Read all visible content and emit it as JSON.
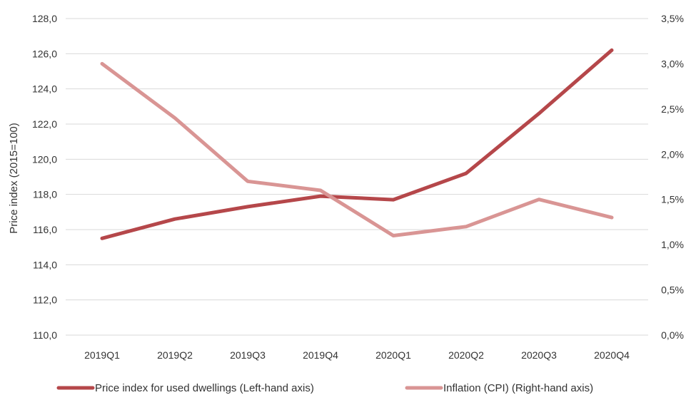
{
  "chart_data": {
    "type": "line",
    "title": "",
    "categories": [
      "2019Q1",
      "2019Q2",
      "2019Q3",
      "2019Q4",
      "2020Q1",
      "2020Q2",
      "2020Q3",
      "2020Q4"
    ],
    "left_axis": {
      "label": "Price index (2015=100)",
      "ylim": [
        110,
        128
      ],
      "ticks": [
        "110,0",
        "112,0",
        "114,0",
        "116,0",
        "118,0",
        "120,0",
        "122,0",
        "124,0",
        "126,0",
        "128,0"
      ]
    },
    "right_axis": {
      "label": "",
      "ylim": [
        0,
        3.5
      ],
      "ticks": [
        "0,0%",
        "0,5%",
        "1,0%",
        "1,5%",
        "2,0%",
        "2,5%",
        "3,0%",
        "3,5%"
      ]
    },
    "grid": true,
    "legend_position": "bottom",
    "series": [
      {
        "name": "Price index for used dwellings (Left-hand axis)",
        "axis": "left",
        "color": "#b5474a",
        "values": [
          115.5,
          116.6,
          117.3,
          117.9,
          117.7,
          119.2,
          122.6,
          126.2
        ]
      },
      {
        "name": "Inflation (CPI) (Right-hand axis)",
        "axis": "right",
        "color": "#d99594",
        "values": [
          3.0,
          2.4,
          1.7,
          1.6,
          1.1,
          1.2,
          1.5,
          1.3
        ]
      }
    ]
  }
}
